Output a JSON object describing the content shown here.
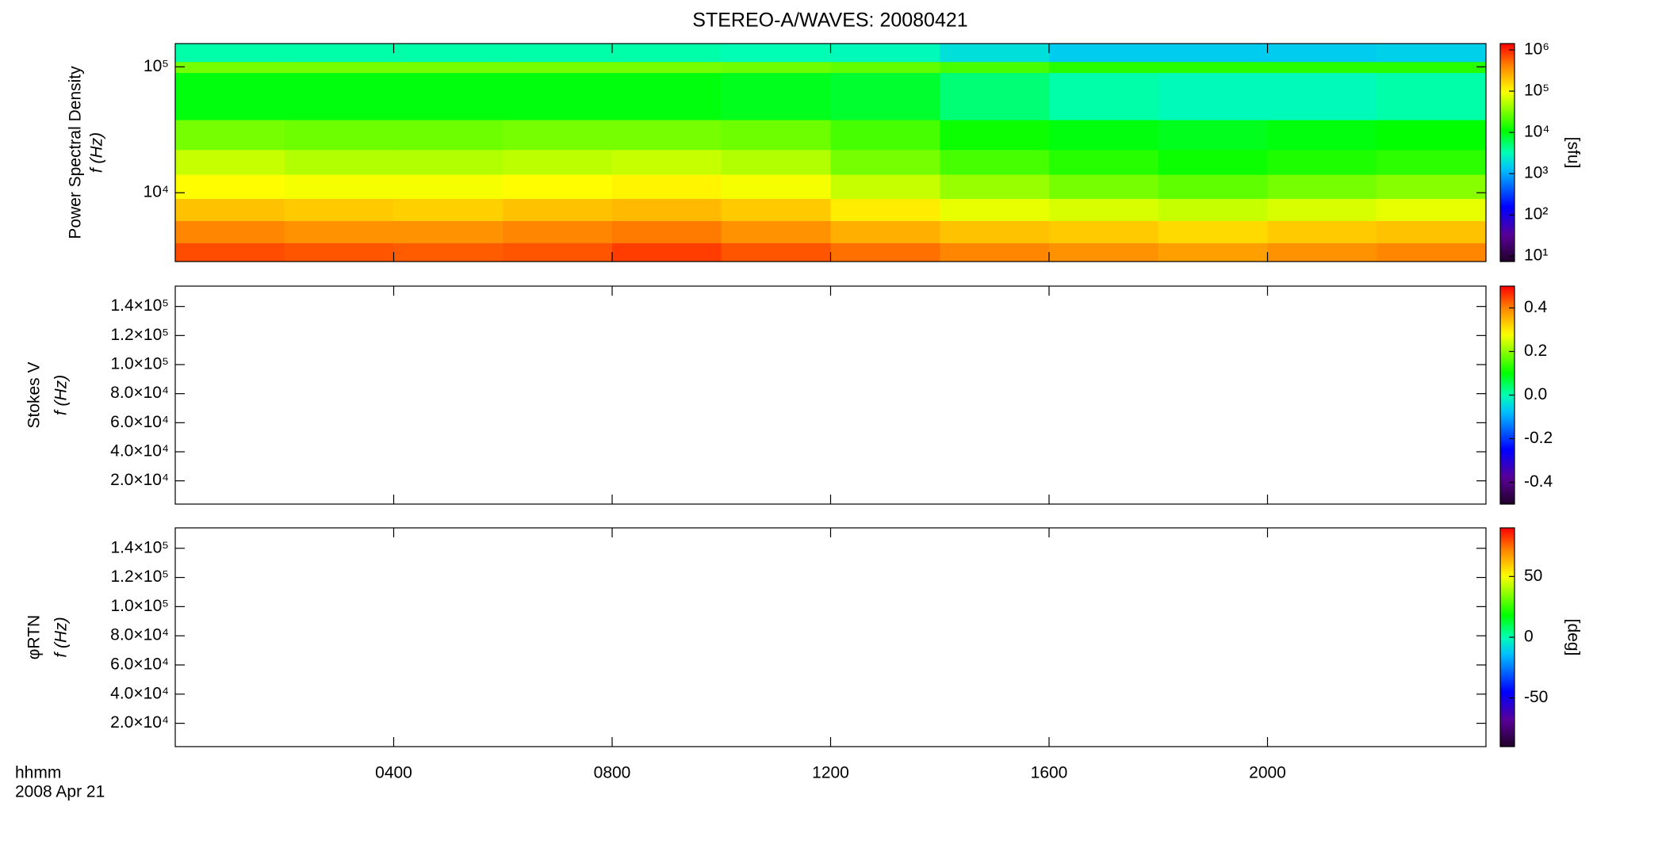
{
  "chart_data": [
    {
      "type": "heatmap",
      "title": "STEREO-A/WAVES: 20080421",
      "ylabel": [
        "Power Spectral Density",
        "f (Hz)"
      ],
      "log_y": true,
      "ylim": [
        2840,
        153000
      ],
      "yticks": [
        {
          "value": 10000,
          "label": "10⁴"
        },
        {
          "value": 100000,
          "label": "10⁵"
        }
      ],
      "x_bins": [
        0,
        2,
        4,
        6,
        8,
        10,
        12,
        14,
        16,
        18,
        20,
        22,
        24
      ],
      "y_bins": [
        2840,
        4000,
        6000,
        9000,
        14000,
        22000,
        38000,
        90000,
        110000,
        153000
      ],
      "values": [
        [
          700000,
          650000,
          600000,
          650000,
          800000,
          650000,
          500000,
          400000,
          350000,
          300000,
          350000,
          400000
        ],
        [
          400000,
          350000,
          350000,
          400000,
          450000,
          350000,
          250000,
          200000,
          180000,
          150000,
          180000,
          200000
        ],
        [
          200000,
          180000,
          170000,
          200000,
          220000,
          180000,
          120000,
          80000,
          70000,
          60000,
          70000,
          80000
        ],
        [
          100000,
          90000,
          90000,
          100000,
          110000,
          90000,
          60000,
          40000,
          30000,
          25000,
          30000,
          35000
        ],
        [
          60000,
          50000,
          50000,
          55000,
          60000,
          50000,
          30000,
          20000,
          15000,
          12000,
          14000,
          16000
        ],
        [
          30000,
          28000,
          28000,
          30000,
          30000,
          28000,
          20000,
          12000,
          10000,
          9000,
          10000,
          11000
        ],
        [
          10000,
          10000,
          10000,
          10000,
          10000,
          9000,
          8000,
          5000,
          3500,
          3000,
          3000,
          3500
        ],
        [
          30000,
          30000,
          30000,
          30000,
          30000,
          28000,
          25000,
          20000,
          15000,
          15000,
          15000,
          15000
        ],
        [
          3500,
          3500,
          3500,
          3500,
          3500,
          3200,
          3000,
          2000,
          1500,
          1500,
          1500,
          1600
        ]
      ],
      "log_c": true,
      "clim": [
        7.4,
        1420000
      ],
      "cticks": [
        {
          "value": 10,
          "label": "10¹"
        },
        {
          "value": 100,
          "label": "10²"
        },
        {
          "value": 1000,
          "label": "10³"
        },
        {
          "value": 10000,
          "label": "10⁴"
        },
        {
          "value": 100000,
          "label": "10⁵"
        },
        {
          "value": 1000000,
          "label": "10⁶"
        }
      ],
      "colorbar_label": "[sfu]"
    },
    {
      "type": "heatmap",
      "ylabel": [
        "Stokes V",
        "f (Hz)"
      ],
      "log_y": false,
      "ylim": [
        4000,
        154000
      ],
      "yticks": [
        {
          "value": 20000,
          "label": "2.0×10⁴"
        },
        {
          "value": 40000,
          "label": "4.0×10⁴"
        },
        {
          "value": 60000,
          "label": "6.0×10⁴"
        },
        {
          "value": 80000,
          "label": "8.0×10⁴"
        },
        {
          "value": 100000,
          "label": "1.0×10⁵"
        },
        {
          "value": 120000,
          "label": "1.2×10⁵"
        },
        {
          "value": 140000,
          "label": "1.4×10⁵"
        }
      ],
      "log_c": false,
      "clim": [
        -0.5,
        0.5
      ],
      "cticks": [
        -0.4,
        -0.2,
        {
          "value": 0,
          "label": "0.0"
        },
        0.2,
        0.4
      ]
    },
    {
      "type": "heatmap",
      "ylabel": [
        "φRTN",
        "f (Hz)"
      ],
      "log_y": false,
      "ylim": [
        4000,
        154000
      ],
      "yticks": [
        {
          "value": 20000,
          "label": "2.0×10⁴"
        },
        {
          "value": 40000,
          "label": "4.0×10⁴"
        },
        {
          "value": 60000,
          "label": "6.0×10⁴"
        },
        {
          "value": 80000,
          "label": "8.0×10⁴"
        },
        {
          "value": 100000,
          "label": "1.0×10⁵"
        },
        {
          "value": 120000,
          "label": "1.2×10⁵"
        },
        {
          "value": 140000,
          "label": "1.4×10⁵"
        }
      ],
      "log_c": false,
      "clim": [
        -90,
        90
      ],
      "cticks": [
        -50,
        0,
        50
      ],
      "colorbar_label": "[deg]",
      "xlim": [
        0,
        24
      ],
      "xticks": [
        {
          "value": 4,
          "label": "0400"
        },
        {
          "value": 8,
          "label": "0800"
        },
        {
          "value": 12,
          "label": "1200"
        },
        {
          "value": 16,
          "label": "1600"
        },
        {
          "value": 20,
          "label": "2000"
        }
      ],
      "xlabel": [
        "hhmm",
        "2008 Apr 21"
      ]
    }
  ]
}
